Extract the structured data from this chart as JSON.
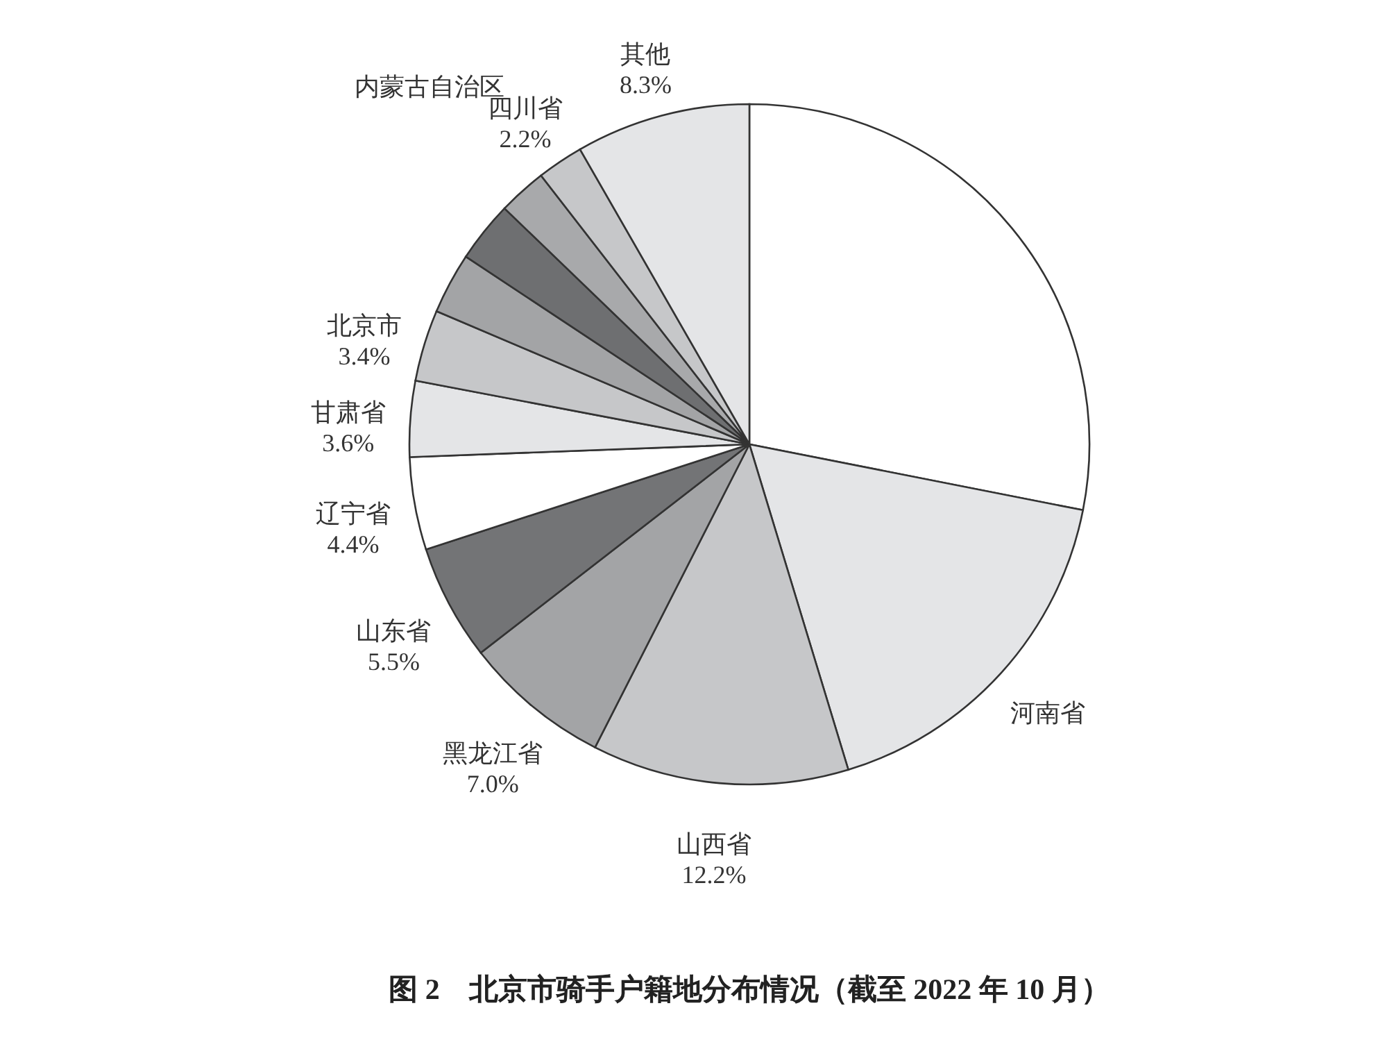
{
  "chart_data": {
    "type": "pie",
    "title": "图 2　北京市骑手户籍地分布情况（截至 2022 年 10 月）",
    "categories": [
      null,
      "河南省",
      "山西省",
      "黑龙江省",
      "山东省",
      "辽宁省",
      "甘肃省",
      "北京市",
      null,
      null,
      "内蒙古自治区",
      "四川省",
      "其他"
    ],
    "values": [
      28.1,
      17.2,
      12.2,
      7.0,
      5.5,
      4.4,
      3.6,
      3.4,
      2.9,
      2.9,
      2.3,
      2.2,
      8.3
    ],
    "value_labels": [
      null,
      null,
      "12.2%",
      "7.0%",
      "5.5%",
      "4.4%",
      "3.6%",
      "3.4%",
      null,
      null,
      null,
      "2.2%",
      "8.3%"
    ],
    "colors": [
      "#ffffff",
      "#e4e5e7",
      "#c6c7c9",
      "#a3a4a6",
      "#737476",
      "#ffffff",
      "#e4e5e7",
      "#c6c7c9",
      "#a3a4a6",
      "#6e6f71",
      "#a8a9ab",
      "#c6c7c9",
      "#e4e5e7"
    ]
  }
}
